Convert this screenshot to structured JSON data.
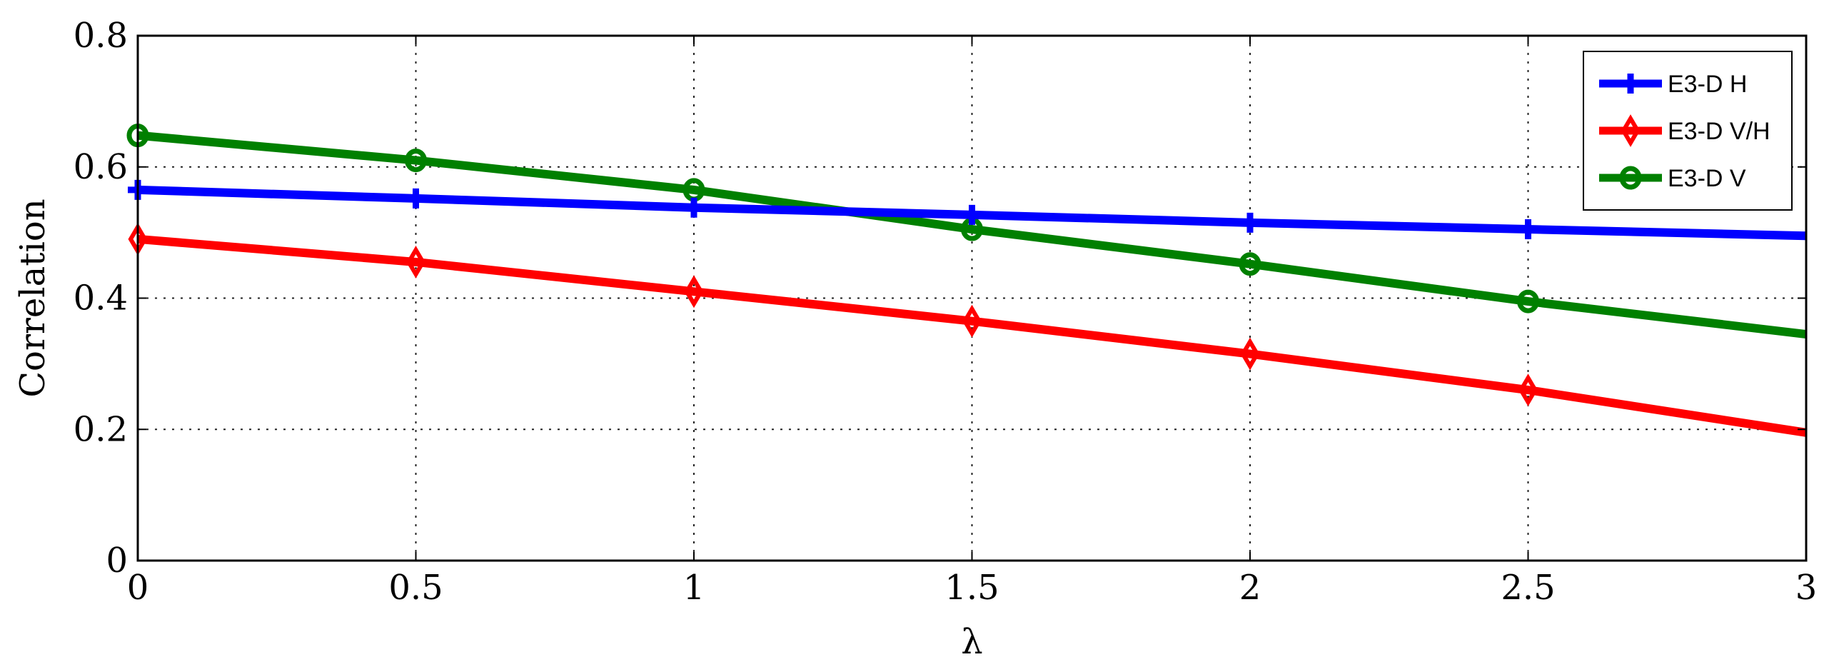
{
  "chart_data": {
    "type": "line",
    "xlabel": "λ",
    "ylabel": "Correlation",
    "xlim": [
      0,
      3
    ],
    "ylim": [
      0,
      0.8
    ],
    "xticks": [
      "0",
      "0.5",
      "1",
      "1.5",
      "2",
      "2.5",
      "3"
    ],
    "yticks": [
      "0",
      "0.2",
      "0.4",
      "0.6",
      "0.8"
    ],
    "grid": true,
    "legend_position": "top-right",
    "x": [
      0,
      0.5,
      1,
      1.5,
      2,
      2.5,
      3
    ],
    "series": [
      {
        "name": "E3-D H",
        "color": "#0000ff",
        "marker": "plus",
        "values": [
          0.565,
          0.552,
          0.538,
          0.527,
          0.515,
          0.505,
          0.495
        ]
      },
      {
        "name": "E3-D V/H",
        "color": "#ff0000",
        "marker": "diamond",
        "values": [
          0.49,
          0.455,
          0.41,
          0.365,
          0.315,
          0.26,
          0.195
        ]
      },
      {
        "name": "E3-D V",
        "color": "#008000",
        "marker": "circle",
        "values": [
          0.648,
          0.61,
          0.565,
          0.505,
          0.452,
          0.395,
          0.345
        ]
      }
    ]
  }
}
